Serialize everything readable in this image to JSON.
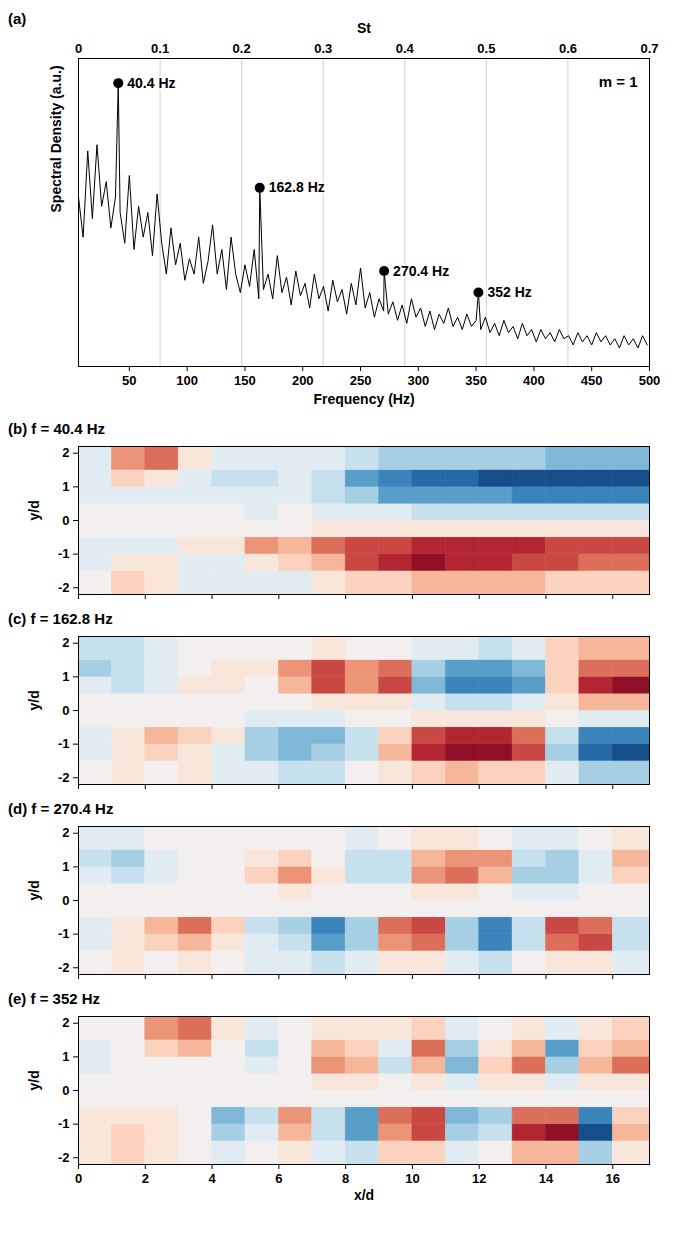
{
  "chart_data": [
    {
      "type": "line",
      "panel": "(a)",
      "x_label": "Frequency (Hz)",
      "x2_label": "St",
      "y_label": "Spectral Density (a.u.)",
      "inset_label": "m = 1",
      "color": "#000000",
      "grid": true,
      "tick_labels": "x",
      "xlim": [
        6,
        500
      ],
      "xticks": [
        50,
        100,
        150,
        200,
        250,
        300,
        350,
        400,
        450,
        500
      ],
      "x2lim": [
        0,
        0.7
      ],
      "x2ticks": [
        0,
        0.1,
        0.2,
        0.3,
        0.4,
        0.5,
        0.6,
        0.7
      ],
      "ylim": [
        0,
        1
      ],
      "yticks": [],
      "x": [
        6,
        10,
        14,
        18,
        22,
        26,
        30,
        34,
        38,
        40.4,
        42,
        46,
        50,
        54,
        58,
        62,
        66,
        70,
        74,
        78,
        82,
        86,
        90,
        94,
        98,
        102,
        106,
        110,
        114,
        118,
        122,
        126,
        130,
        134,
        138,
        142,
        146,
        150,
        154,
        158,
        162,
        162.8,
        166,
        170,
        174,
        178,
        182,
        186,
        190,
        194,
        198,
        202,
        206,
        210,
        214,
        218,
        222,
        226,
        230,
        234,
        238,
        242,
        246,
        250,
        254,
        258,
        262,
        266,
        270,
        270.4,
        274,
        278,
        282,
        286,
        290,
        294,
        298,
        302,
        306,
        310,
        314,
        318,
        322,
        326,
        330,
        334,
        338,
        342,
        346,
        350,
        352,
        354,
        358,
        362,
        366,
        370,
        374,
        378,
        382,
        386,
        390,
        394,
        398,
        402,
        406,
        410,
        414,
        418,
        422,
        426,
        430,
        434,
        438,
        442,
        446,
        450,
        454,
        458,
        462,
        466,
        470,
        474,
        478,
        482,
        486,
        490,
        494,
        498
      ],
      "values": [
        0.55,
        0.42,
        0.7,
        0.48,
        0.72,
        0.52,
        0.6,
        0.45,
        0.55,
        0.92,
        0.5,
        0.4,
        0.62,
        0.38,
        0.52,
        0.42,
        0.5,
        0.36,
        0.56,
        0.4,
        0.3,
        0.45,
        0.33,
        0.4,
        0.28,
        0.35,
        0.3,
        0.42,
        0.27,
        0.34,
        0.46,
        0.3,
        0.38,
        0.25,
        0.42,
        0.3,
        0.24,
        0.33,
        0.26,
        0.38,
        0.22,
        0.58,
        0.25,
        0.3,
        0.22,
        0.36,
        0.24,
        0.29,
        0.2,
        0.31,
        0.23,
        0.27,
        0.19,
        0.3,
        0.22,
        0.26,
        0.18,
        0.28,
        0.21,
        0.25,
        0.17,
        0.27,
        0.2,
        0.32,
        0.19,
        0.24,
        0.16,
        0.22,
        0.18,
        0.31,
        0.17,
        0.21,
        0.15,
        0.2,
        0.14,
        0.22,
        0.16,
        0.19,
        0.13,
        0.18,
        0.12,
        0.17,
        0.14,
        0.19,
        0.13,
        0.16,
        0.12,
        0.17,
        0.13,
        0.15,
        0.24,
        0.12,
        0.16,
        0.11,
        0.14,
        0.1,
        0.15,
        0.11,
        0.13,
        0.09,
        0.14,
        0.1,
        0.12,
        0.08,
        0.12,
        0.09,
        0.11,
        0.08,
        0.12,
        0.09,
        0.1,
        0.07,
        0.11,
        0.08,
        0.1,
        0.07,
        0.11,
        0.08,
        0.1,
        0.07,
        0.09,
        0.06,
        0.1,
        0.07,
        0.09,
        0.06,
        0.1,
        0.07
      ],
      "peaks": [
        {
          "x": 40.4,
          "y": 0.92,
          "label": "40.4 Hz"
        },
        {
          "x": 162.8,
          "y": 0.58,
          "label": "162.8 Hz"
        },
        {
          "x": 270.4,
          "y": 0.31,
          "label": "270.4 Hz"
        },
        {
          "x": 352,
          "y": 0.24,
          "label": "352 Hz"
        }
      ]
    },
    {
      "type": "heatmap",
      "panel": "(b)",
      "title": "f = 40.4 Hz",
      "y_label": "y/d",
      "tick_labels": "y",
      "xlim": [
        0,
        17.1
      ],
      "xticks": [
        0,
        2,
        4,
        6,
        8,
        10,
        12,
        14,
        16
      ],
      "ylim": [
        -2.2,
        2.2
      ],
      "yticks": [
        -2,
        -1,
        0,
        1,
        2
      ],
      "color_range": [
        -9,
        9
      ],
      "x_edges": [
        0,
        1,
        2,
        3,
        4,
        5,
        6,
        7,
        8,
        9,
        10,
        11,
        12,
        13,
        14,
        15,
        16,
        17.1
      ],
      "y_edges": [
        -2.2,
        -1.5,
        -1,
        -0.5,
        0,
        0.5,
        1,
        1.5,
        2.2
      ],
      "cells": [
        [
          0,
          2,
          1,
          -1,
          -1,
          -1,
          -1,
          1,
          2,
          2,
          3,
          3,
          3,
          3,
          2,
          2,
          2
        ],
        [
          -1,
          1,
          1,
          -1,
          -1,
          1,
          2,
          3,
          6,
          7,
          8,
          7,
          7,
          6,
          6,
          5,
          5
        ],
        [
          -1,
          -1,
          -1,
          1,
          1,
          4,
          3,
          5,
          6,
          6,
          7,
          7,
          7,
          7,
          6,
          6,
          6
        ],
        [
          0,
          0,
          0,
          0,
          0,
          0,
          0,
          1,
          1,
          1,
          1,
          1,
          1,
          1,
          1,
          1,
          1
        ],
        [
          0,
          0,
          0,
          0,
          0,
          -1,
          0,
          -1,
          -1,
          -1,
          -2,
          -2,
          -2,
          -2,
          -2,
          -2,
          -2
        ],
        [
          -1,
          -1,
          -1,
          -1,
          -1,
          -1,
          -1,
          -2,
          -3,
          -5,
          -5,
          -5,
          -5,
          -6,
          -6,
          -6,
          -6
        ],
        [
          -1,
          2,
          1,
          -1,
          -2,
          -2,
          -1,
          -2,
          -5,
          -6,
          -7,
          -7,
          -8,
          -8,
          -8,
          -8,
          -8
        ],
        [
          -1,
          4,
          5,
          1,
          -1,
          -1,
          -1,
          -1,
          -2,
          -3,
          -3,
          -3,
          -3,
          -3,
          -4,
          -4,
          -4
        ]
      ]
    },
    {
      "type": "heatmap",
      "panel": "(c)",
      "title": "f = 162.8 Hz",
      "y_label": "y/d",
      "tick_labels": "y",
      "xlim": [
        0,
        17.1
      ],
      "xticks": [
        0,
        2,
        4,
        6,
        8,
        10,
        12,
        14,
        16
      ],
      "ylim": [
        -2.2,
        2.2
      ],
      "yticks": [
        -2,
        -1,
        0,
        1,
        2
      ],
      "color_range": [
        -9,
        9
      ],
      "x_edges": [
        0,
        1,
        2,
        3,
        4,
        5,
        6,
        7,
        8,
        9,
        10,
        11,
        12,
        13,
        14,
        15,
        16,
        17.1
      ],
      "y_edges": [
        -2.2,
        -1.5,
        -1,
        -0.5,
        0,
        0.5,
        1,
        1.5,
        2.2
      ],
      "cells": [
        [
          0,
          1,
          0,
          1,
          -1,
          -1,
          -2,
          -2,
          0,
          1,
          2,
          3,
          2,
          2,
          -1,
          -3,
          -3
        ],
        [
          -1,
          1,
          2,
          1,
          -1,
          -3,
          -4,
          -3,
          -2,
          3,
          7,
          8,
          8,
          6,
          -3,
          -7,
          -8
        ],
        [
          -1,
          1,
          3,
          2,
          1,
          -3,
          -4,
          -4,
          -2,
          2,
          6,
          7,
          7,
          5,
          -2,
          -6,
          -6
        ],
        [
          0,
          0,
          0,
          0,
          0,
          -1,
          -1,
          -1,
          0,
          0,
          1,
          1,
          1,
          1,
          0,
          -1,
          -1
        ],
        [
          0,
          0,
          0,
          0,
          0,
          0,
          0,
          1,
          1,
          1,
          -1,
          -2,
          -2,
          -1,
          1,
          3,
          3
        ],
        [
          -1,
          -2,
          -1,
          1,
          1,
          0,
          3,
          6,
          4,
          6,
          -4,
          -6,
          -6,
          -5,
          2,
          7,
          8
        ],
        [
          -3,
          -2,
          -1,
          0,
          1,
          1,
          4,
          6,
          4,
          5,
          -3,
          -5,
          -5,
          -4,
          2,
          5,
          5
        ],
        [
          -2,
          -2,
          -1,
          0,
          0,
          0,
          0,
          1,
          0,
          0,
          -1,
          -1,
          -2,
          -1,
          2,
          3,
          3
        ]
      ]
    },
    {
      "type": "heatmap",
      "panel": "(d)",
      "title": "f = 270.4 Hz",
      "y_label": "y/d",
      "tick_labels": "y",
      "xlim": [
        0,
        17.1
      ],
      "xticks": [
        0,
        2,
        4,
        6,
        8,
        10,
        12,
        14,
        16
      ],
      "ylim": [
        -2.2,
        2.2
      ],
      "yticks": [
        -2,
        -1,
        0,
        1,
        2
      ],
      "color_range": [
        -9,
        9
      ],
      "x_edges": [
        0,
        1,
        2,
        3,
        4,
        5,
        6,
        7,
        8,
        9,
        10,
        11,
        12,
        13,
        14,
        15,
        16,
        17.1
      ],
      "y_edges": [
        -2.2,
        -1.5,
        -1,
        -0.5,
        0,
        0.5,
        1,
        1.5,
        2.2
      ],
      "cells": [
        [
          0,
          1,
          0,
          1,
          0,
          -1,
          -1,
          -2,
          -1,
          1,
          1,
          -1,
          -2,
          0,
          1,
          1,
          -1
        ],
        [
          -1,
          1,
          2,
          3,
          1,
          -1,
          -2,
          -5,
          -3,
          4,
          5,
          -3,
          -6,
          -2,
          5,
          6,
          -2
        ],
        [
          -1,
          1,
          3,
          5,
          2,
          -2,
          -3,
          -6,
          -3,
          5,
          6,
          -3,
          -6,
          -2,
          6,
          5,
          -2
        ],
        [
          0,
          0,
          0,
          0,
          0,
          0,
          0,
          0,
          0,
          0,
          0,
          0,
          0,
          0,
          0,
          0,
          0
        ],
        [
          0,
          0,
          0,
          0,
          0,
          0,
          1,
          0,
          0,
          0,
          1,
          1,
          0,
          -1,
          -1,
          0,
          0
        ],
        [
          -1,
          -2,
          -1,
          0,
          0,
          2,
          4,
          1,
          -2,
          -2,
          4,
          5,
          3,
          -3,
          -3,
          -1,
          2
        ],
        [
          -2,
          -3,
          -1,
          0,
          0,
          1,
          2,
          0,
          -2,
          -2,
          3,
          4,
          4,
          -2,
          -3,
          -1,
          3
        ],
        [
          -1,
          -1,
          0,
          0,
          0,
          0,
          0,
          0,
          -1,
          0,
          1,
          1,
          0,
          -1,
          -1,
          0,
          1
        ]
      ]
    },
    {
      "type": "heatmap",
      "panel": "(e)",
      "title": "f = 352 Hz",
      "x_label": "x/d",
      "y_label": "y/d",
      "tick_labels": true,
      "xlim": [
        0,
        17.1
      ],
      "xticks": [
        0,
        2,
        4,
        6,
        8,
        10,
        12,
        14,
        16
      ],
      "ylim": [
        -2.2,
        2.2
      ],
      "yticks": [
        -2,
        -1,
        0,
        1,
        2
      ],
      "color_range": [
        -9,
        9
      ],
      "x_edges": [
        0,
        1,
        2,
        3,
        4,
        5,
        6,
        7,
        8,
        9,
        10,
        11,
        12,
        13,
        14,
        15,
        16,
        17.1
      ],
      "y_edges": [
        -2.2,
        -1.5,
        -1,
        -0.5,
        0,
        0.5,
        1,
        1.5,
        2.2
      ],
      "cells": [
        [
          1,
          2,
          1,
          0,
          -1,
          0,
          1,
          -1,
          -2,
          2,
          2,
          -1,
          0,
          3,
          3,
          -3,
          1
        ],
        [
          1,
          2,
          1,
          0,
          -3,
          -1,
          3,
          -2,
          -5,
          4,
          6,
          -3,
          -2,
          7,
          8,
          -8,
          3
        ],
        [
          1,
          1,
          1,
          0,
          -4,
          -2,
          4,
          -2,
          -5,
          5,
          6,
          -4,
          -3,
          5,
          5,
          -6,
          2
        ],
        [
          0,
          0,
          0,
          0,
          0,
          0,
          0,
          0,
          0,
          0,
          0,
          0,
          0,
          0,
          0,
          0,
          0
        ],
        [
          0,
          0,
          0,
          0,
          0,
          0,
          0,
          1,
          1,
          0,
          1,
          -1,
          1,
          1,
          -1,
          1,
          1
        ],
        [
          -1,
          0,
          0,
          0,
          0,
          -1,
          0,
          4,
          3,
          -2,
          3,
          -4,
          2,
          5,
          -3,
          3,
          5
        ],
        [
          -1,
          0,
          2,
          3,
          0,
          -2,
          0,
          3,
          2,
          -1,
          5,
          -3,
          1,
          3,
          -5,
          2,
          3
        ],
        [
          0,
          0,
          4,
          5,
          1,
          -1,
          0,
          1,
          1,
          1,
          2,
          -1,
          0,
          1,
          -1,
          1,
          2
        ]
      ]
    }
  ]
}
